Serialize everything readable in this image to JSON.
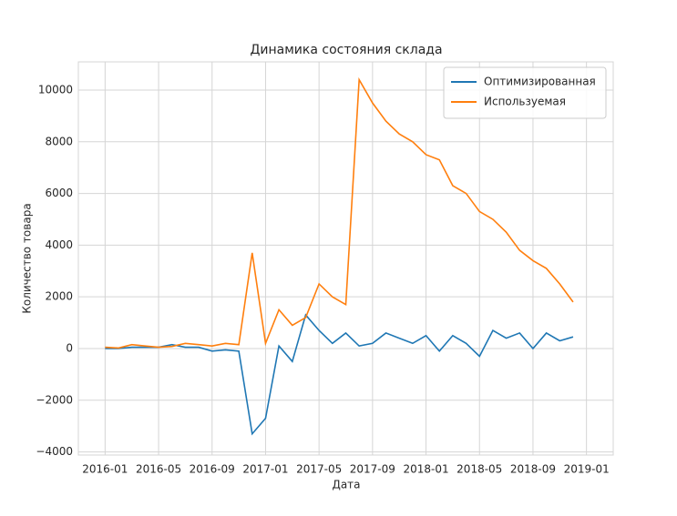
{
  "chart_data": {
    "type": "line",
    "title": "Динамика состояния склада",
    "x_label": "Дата",
    "y_label": "Количество товара",
    "x": [
      "2016-01",
      "2016-02",
      "2016-03",
      "2016-04",
      "2016-05",
      "2016-06",
      "2016-07",
      "2016-08",
      "2016-09",
      "2016-10",
      "2016-11",
      "2016-12",
      "2017-01",
      "2017-02",
      "2017-03",
      "2017-04",
      "2017-05",
      "2017-06",
      "2017-07",
      "2017-08",
      "2017-09",
      "2017-10",
      "2017-11",
      "2017-12",
      "2018-01",
      "2018-02",
      "2018-03",
      "2018-04",
      "2018-05",
      "2018-06",
      "2018-07",
      "2018-08",
      "2018-09",
      "2018-10",
      "2018-11",
      "2018-12"
    ],
    "series": [
      {
        "name": "Оптимизированная",
        "color": "#1f77b4",
        "values": [
          0,
          0,
          50,
          50,
          50,
          150,
          50,
          50,
          -100,
          -50,
          -100,
          -3300,
          -2700,
          100,
          -500,
          1300,
          700,
          200,
          600,
          100,
          200,
          600,
          400,
          200,
          500,
          -100,
          500,
          200,
          -300,
          700,
          400,
          600,
          0,
          600,
          300,
          450
        ]
      },
      {
        "name": "Используемая",
        "color": "#ff7f0e",
        "values": [
          50,
          20,
          150,
          100,
          50,
          80,
          200,
          150,
          100,
          200,
          150,
          3700,
          200,
          1500,
          900,
          1200,
          2500,
          2000,
          1700,
          10400,
          9500,
          8800,
          8300,
          8000,
          7500,
          7300,
          6300,
          6000,
          5300,
          5000,
          4500,
          3800,
          3400,
          3100,
          2500,
          1800
        ]
      }
    ],
    "xlim": [
      "2015-11",
      "2019-03"
    ],
    "xticks": [
      "2016-01",
      "2016-05",
      "2016-09",
      "2017-01",
      "2017-05",
      "2017-09",
      "2018-01",
      "2018-05",
      "2018-09",
      "2019-01"
    ],
    "ylim": [
      -4120,
      11090
    ],
    "yticks": [
      {
        "value": -4000,
        "label": "−4000"
      },
      {
        "value": -2000,
        "label": "−2000"
      },
      0,
      2000,
      4000,
      6000,
      8000,
      10000
    ],
    "grid": true,
    "legend": "upper right"
  }
}
